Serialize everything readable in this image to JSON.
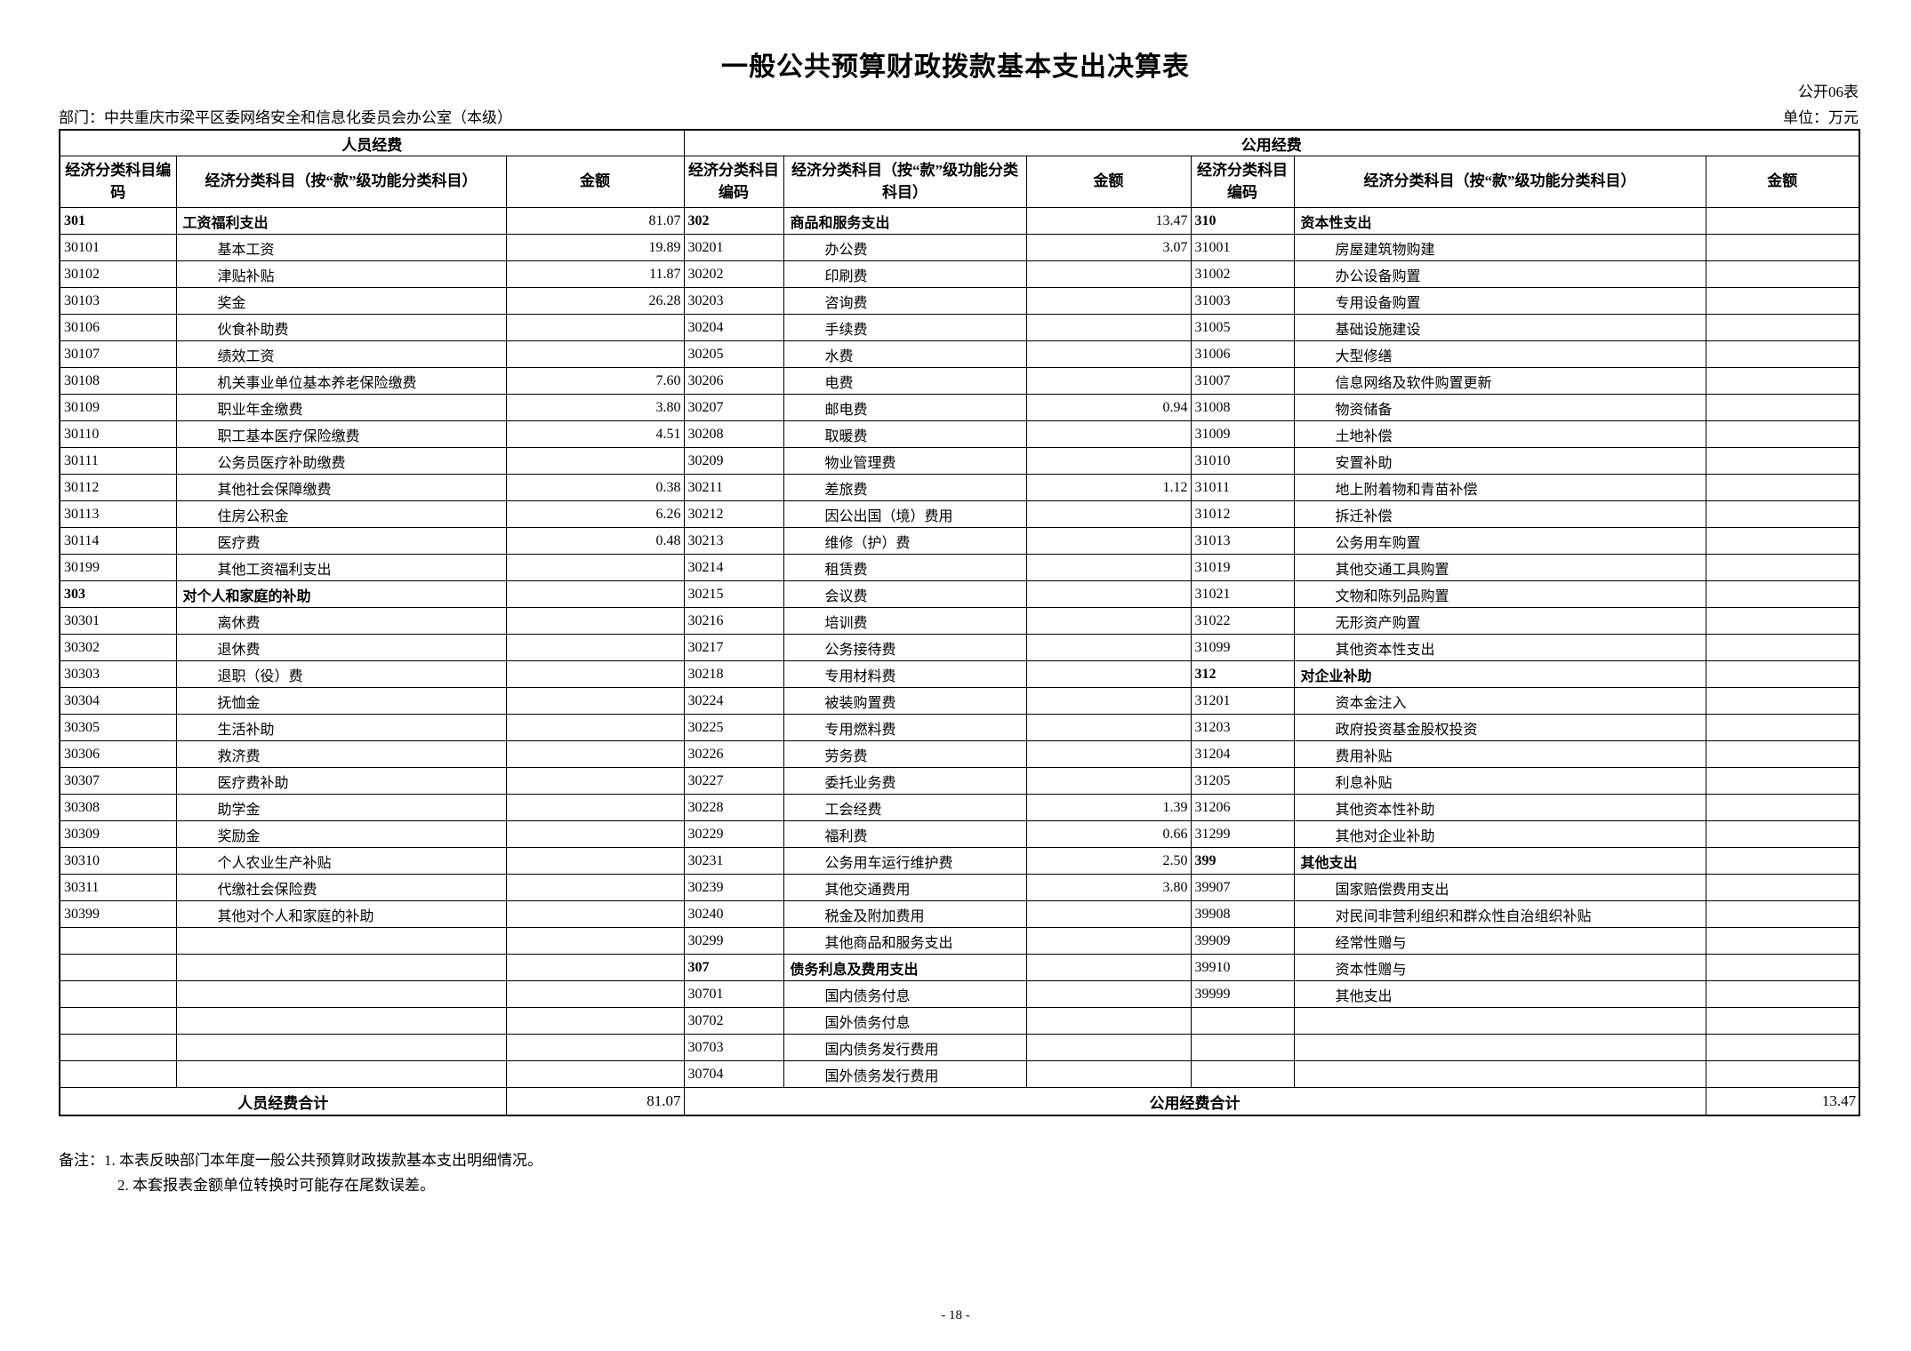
{
  "page": {
    "title": "一般公共预算财政拨款基本支出决算表",
    "form_code": "公开06表",
    "department_label": "部门：中共重庆市梁平区委网络安全和信息化委员会办公室（本级）",
    "unit_label": "单位：万元",
    "page_number": "- 18 -",
    "notes_prefix": "备注：",
    "note1": "1. 本表反映部门本年度一般公共预算财政拨款基本支出明细情况。",
    "note2": "2. 本套报表金额单位转换时可能存在尾数误差。"
  },
  "table": {
    "group_headers": {
      "personnel": "人员经费",
      "public": "公用经费"
    },
    "column_headers": {
      "code": "经济分类科目编码",
      "subject": "经济分类科目（按“款”级功能分类科目）",
      "amount": "金额"
    },
    "totals": {
      "personnel_label": "人员经费合计",
      "personnel_amount": "81.07",
      "public_label": "公用经费合计",
      "public_amount": "13.47"
    },
    "rows": [
      [
        [
          "301",
          "工资福利支出",
          "81.07"
        ],
        [
          "302",
          "商品和服务支出",
          "13.47"
        ],
        [
          "310",
          "资本性支出",
          ""
        ]
      ],
      [
        [
          "30101",
          "基本工资",
          "19.89"
        ],
        [
          "30201",
          "办公费",
          "3.07"
        ],
        [
          "31001",
          "房屋建筑物购建",
          ""
        ]
      ],
      [
        [
          "30102",
          "津贴补贴",
          "11.87"
        ],
        [
          "30202",
          "印刷费",
          ""
        ],
        [
          "31002",
          "办公设备购置",
          ""
        ]
      ],
      [
        [
          "30103",
          "奖金",
          "26.28"
        ],
        [
          "30203",
          "咨询费",
          ""
        ],
        [
          "31003",
          "专用设备购置",
          ""
        ]
      ],
      [
        [
          "30106",
          "伙食补助费",
          ""
        ],
        [
          "30204",
          "手续费",
          ""
        ],
        [
          "31005",
          "基础设施建设",
          ""
        ]
      ],
      [
        [
          "30107",
          "绩效工资",
          ""
        ],
        [
          "30205",
          "水费",
          ""
        ],
        [
          "31006",
          "大型修缮",
          ""
        ]
      ],
      [
        [
          "30108",
          "机关事业单位基本养老保险缴费",
          "7.60"
        ],
        [
          "30206",
          "电费",
          ""
        ],
        [
          "31007",
          "信息网络及软件购置更新",
          ""
        ]
      ],
      [
        [
          "30109",
          "职业年金缴费",
          "3.80"
        ],
        [
          "30207",
          "邮电费",
          "0.94"
        ],
        [
          "31008",
          "物资储备",
          ""
        ]
      ],
      [
        [
          "30110",
          "职工基本医疗保险缴费",
          "4.51"
        ],
        [
          "30208",
          "取暖费",
          ""
        ],
        [
          "31009",
          "土地补偿",
          ""
        ]
      ],
      [
        [
          "30111",
          "公务员医疗补助缴费",
          ""
        ],
        [
          "30209",
          "物业管理费",
          ""
        ],
        [
          "31010",
          "安置补助",
          ""
        ]
      ],
      [
        [
          "30112",
          "其他社会保障缴费",
          "0.38"
        ],
        [
          "30211",
          "差旅费",
          "1.12"
        ],
        [
          "31011",
          "地上附着物和青苗补偿",
          ""
        ]
      ],
      [
        [
          "30113",
          "住房公积金",
          "6.26"
        ],
        [
          "30212",
          "因公出国（境）费用",
          ""
        ],
        [
          "31012",
          "拆迁补偿",
          ""
        ]
      ],
      [
        [
          "30114",
          "医疗费",
          "0.48"
        ],
        [
          "30213",
          "维修（护）费",
          ""
        ],
        [
          "31013",
          "公务用车购置",
          ""
        ]
      ],
      [
        [
          "30199",
          "其他工资福利支出",
          ""
        ],
        [
          "30214",
          "租赁费",
          ""
        ],
        [
          "31019",
          "其他交通工具购置",
          ""
        ]
      ],
      [
        [
          "303",
          "对个人和家庭的补助",
          ""
        ],
        [
          "30215",
          "会议费",
          ""
        ],
        [
          "31021",
          "文物和陈列品购置",
          ""
        ]
      ],
      [
        [
          "30301",
          "离休费",
          ""
        ],
        [
          "30216",
          "培训费",
          ""
        ],
        [
          "31022",
          "无形资产购置",
          ""
        ]
      ],
      [
        [
          "30302",
          "退休费",
          ""
        ],
        [
          "30217",
          "公务接待费",
          ""
        ],
        [
          "31099",
          "其他资本性支出",
          ""
        ]
      ],
      [
        [
          "30303",
          "退职（役）费",
          ""
        ],
        [
          "30218",
          "专用材料费",
          ""
        ],
        [
          "312",
          "对企业补助",
          ""
        ]
      ],
      [
        [
          "30304",
          "抚恤金",
          ""
        ],
        [
          "30224",
          "被装购置费",
          ""
        ],
        [
          "31201",
          "资本金注入",
          ""
        ]
      ],
      [
        [
          "30305",
          "生活补助",
          ""
        ],
        [
          "30225",
          "专用燃料费",
          ""
        ],
        [
          "31203",
          "政府投资基金股权投资",
          ""
        ]
      ],
      [
        [
          "30306",
          "救济费",
          ""
        ],
        [
          "30226",
          "劳务费",
          ""
        ],
        [
          "31204",
          "费用补贴",
          ""
        ]
      ],
      [
        [
          "30307",
          "医疗费补助",
          ""
        ],
        [
          "30227",
          "委托业务费",
          ""
        ],
        [
          "31205",
          "利息补贴",
          ""
        ]
      ],
      [
        [
          "30308",
          "助学金",
          ""
        ],
        [
          "30228",
          "工会经费",
          "1.39"
        ],
        [
          "31206",
          "其他资本性补助",
          ""
        ]
      ],
      [
        [
          "30309",
          "奖励金",
          ""
        ],
        [
          "30229",
          "福利费",
          "0.66"
        ],
        [
          "31299",
          "其他对企业补助",
          ""
        ]
      ],
      [
        [
          "30310",
          "个人农业生产补贴",
          ""
        ],
        [
          "30231",
          "公务用车运行维护费",
          "2.50"
        ],
        [
          "399",
          "其他支出",
          ""
        ]
      ],
      [
        [
          "30311",
          "代缴社会保险费",
          ""
        ],
        [
          "30239",
          "其他交通费用",
          "3.80"
        ],
        [
          "39907",
          "国家赔偿费用支出",
          ""
        ]
      ],
      [
        [
          "30399",
          "其他对个人和家庭的补助",
          ""
        ],
        [
          "30240",
          "税金及附加费用",
          ""
        ],
        [
          "39908",
          "对民间非营利组织和群众性自治组织补贴",
          ""
        ]
      ],
      [
        [
          "",
          "",
          ""
        ],
        [
          "30299",
          "其他商品和服务支出",
          ""
        ],
        [
          "39909",
          "经常性赠与",
          ""
        ]
      ],
      [
        [
          "",
          "",
          ""
        ],
        [
          "307",
          "债务利息及费用支出",
          ""
        ],
        [
          "39910",
          "资本性赠与",
          ""
        ]
      ],
      [
        [
          "",
          "",
          ""
        ],
        [
          "30701",
          "国内债务付息",
          ""
        ],
        [
          "39999",
          "其他支出",
          ""
        ]
      ],
      [
        [
          "",
          "",
          ""
        ],
        [
          "30702",
          "国外债务付息",
          ""
        ],
        [
          "",
          "",
          ""
        ]
      ],
      [
        [
          "",
          "",
          ""
        ],
        [
          "30703",
          "国内债务发行费用",
          ""
        ],
        [
          "",
          "",
          ""
        ]
      ],
      [
        [
          "",
          "",
          ""
        ],
        [
          "30704",
          "国外债务发行费用",
          ""
        ],
        [
          "",
          "",
          ""
        ]
      ]
    ]
  }
}
